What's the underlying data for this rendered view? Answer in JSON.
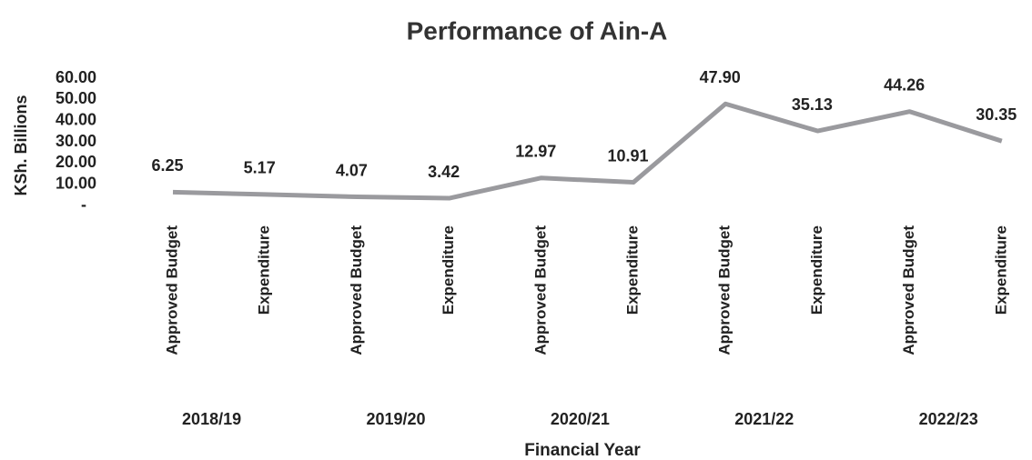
{
  "chart_data": {
    "type": "line",
    "title": "Performance of Ain-A",
    "y_label": "KSh. Billions",
    "x_label": "Financial Year",
    "categories": [
      "Approved Budget",
      "Expenditure",
      "Approved Budget",
      "Expenditure",
      "Approved Budget",
      "Expenditure",
      "Approved Budget",
      "Expenditure",
      "Approved Budget",
      "Expenditure"
    ],
    "groups": [
      "2018/19",
      "2019/20",
      "2020/21",
      "2021/22",
      "2022/23"
    ],
    "values": [
      6.25,
      5.17,
      4.07,
      3.42,
      12.97,
      10.91,
      47.9,
      35.13,
      44.26,
      30.35
    ],
    "value_labels": [
      "6.25",
      "5.17",
      "4.07",
      "3.42",
      "12.97",
      "10.91",
      "47.90",
      "35.13",
      "44.26",
      "30.35"
    ],
    "color": "#9a9a9e",
    "ylim": [
      0,
      60
    ],
    "yticks": [
      {
        "value": 0,
        "label": "-"
      },
      {
        "value": 10,
        "label": "10.00"
      },
      {
        "value": 20,
        "label": "20.00"
      },
      {
        "value": 30,
        "label": "30.00"
      },
      {
        "value": 40,
        "label": "40.00"
      },
      {
        "value": 50,
        "label": "50.00"
      },
      {
        "value": 60,
        "label": "60.00"
      }
    ],
    "grid": false
  }
}
